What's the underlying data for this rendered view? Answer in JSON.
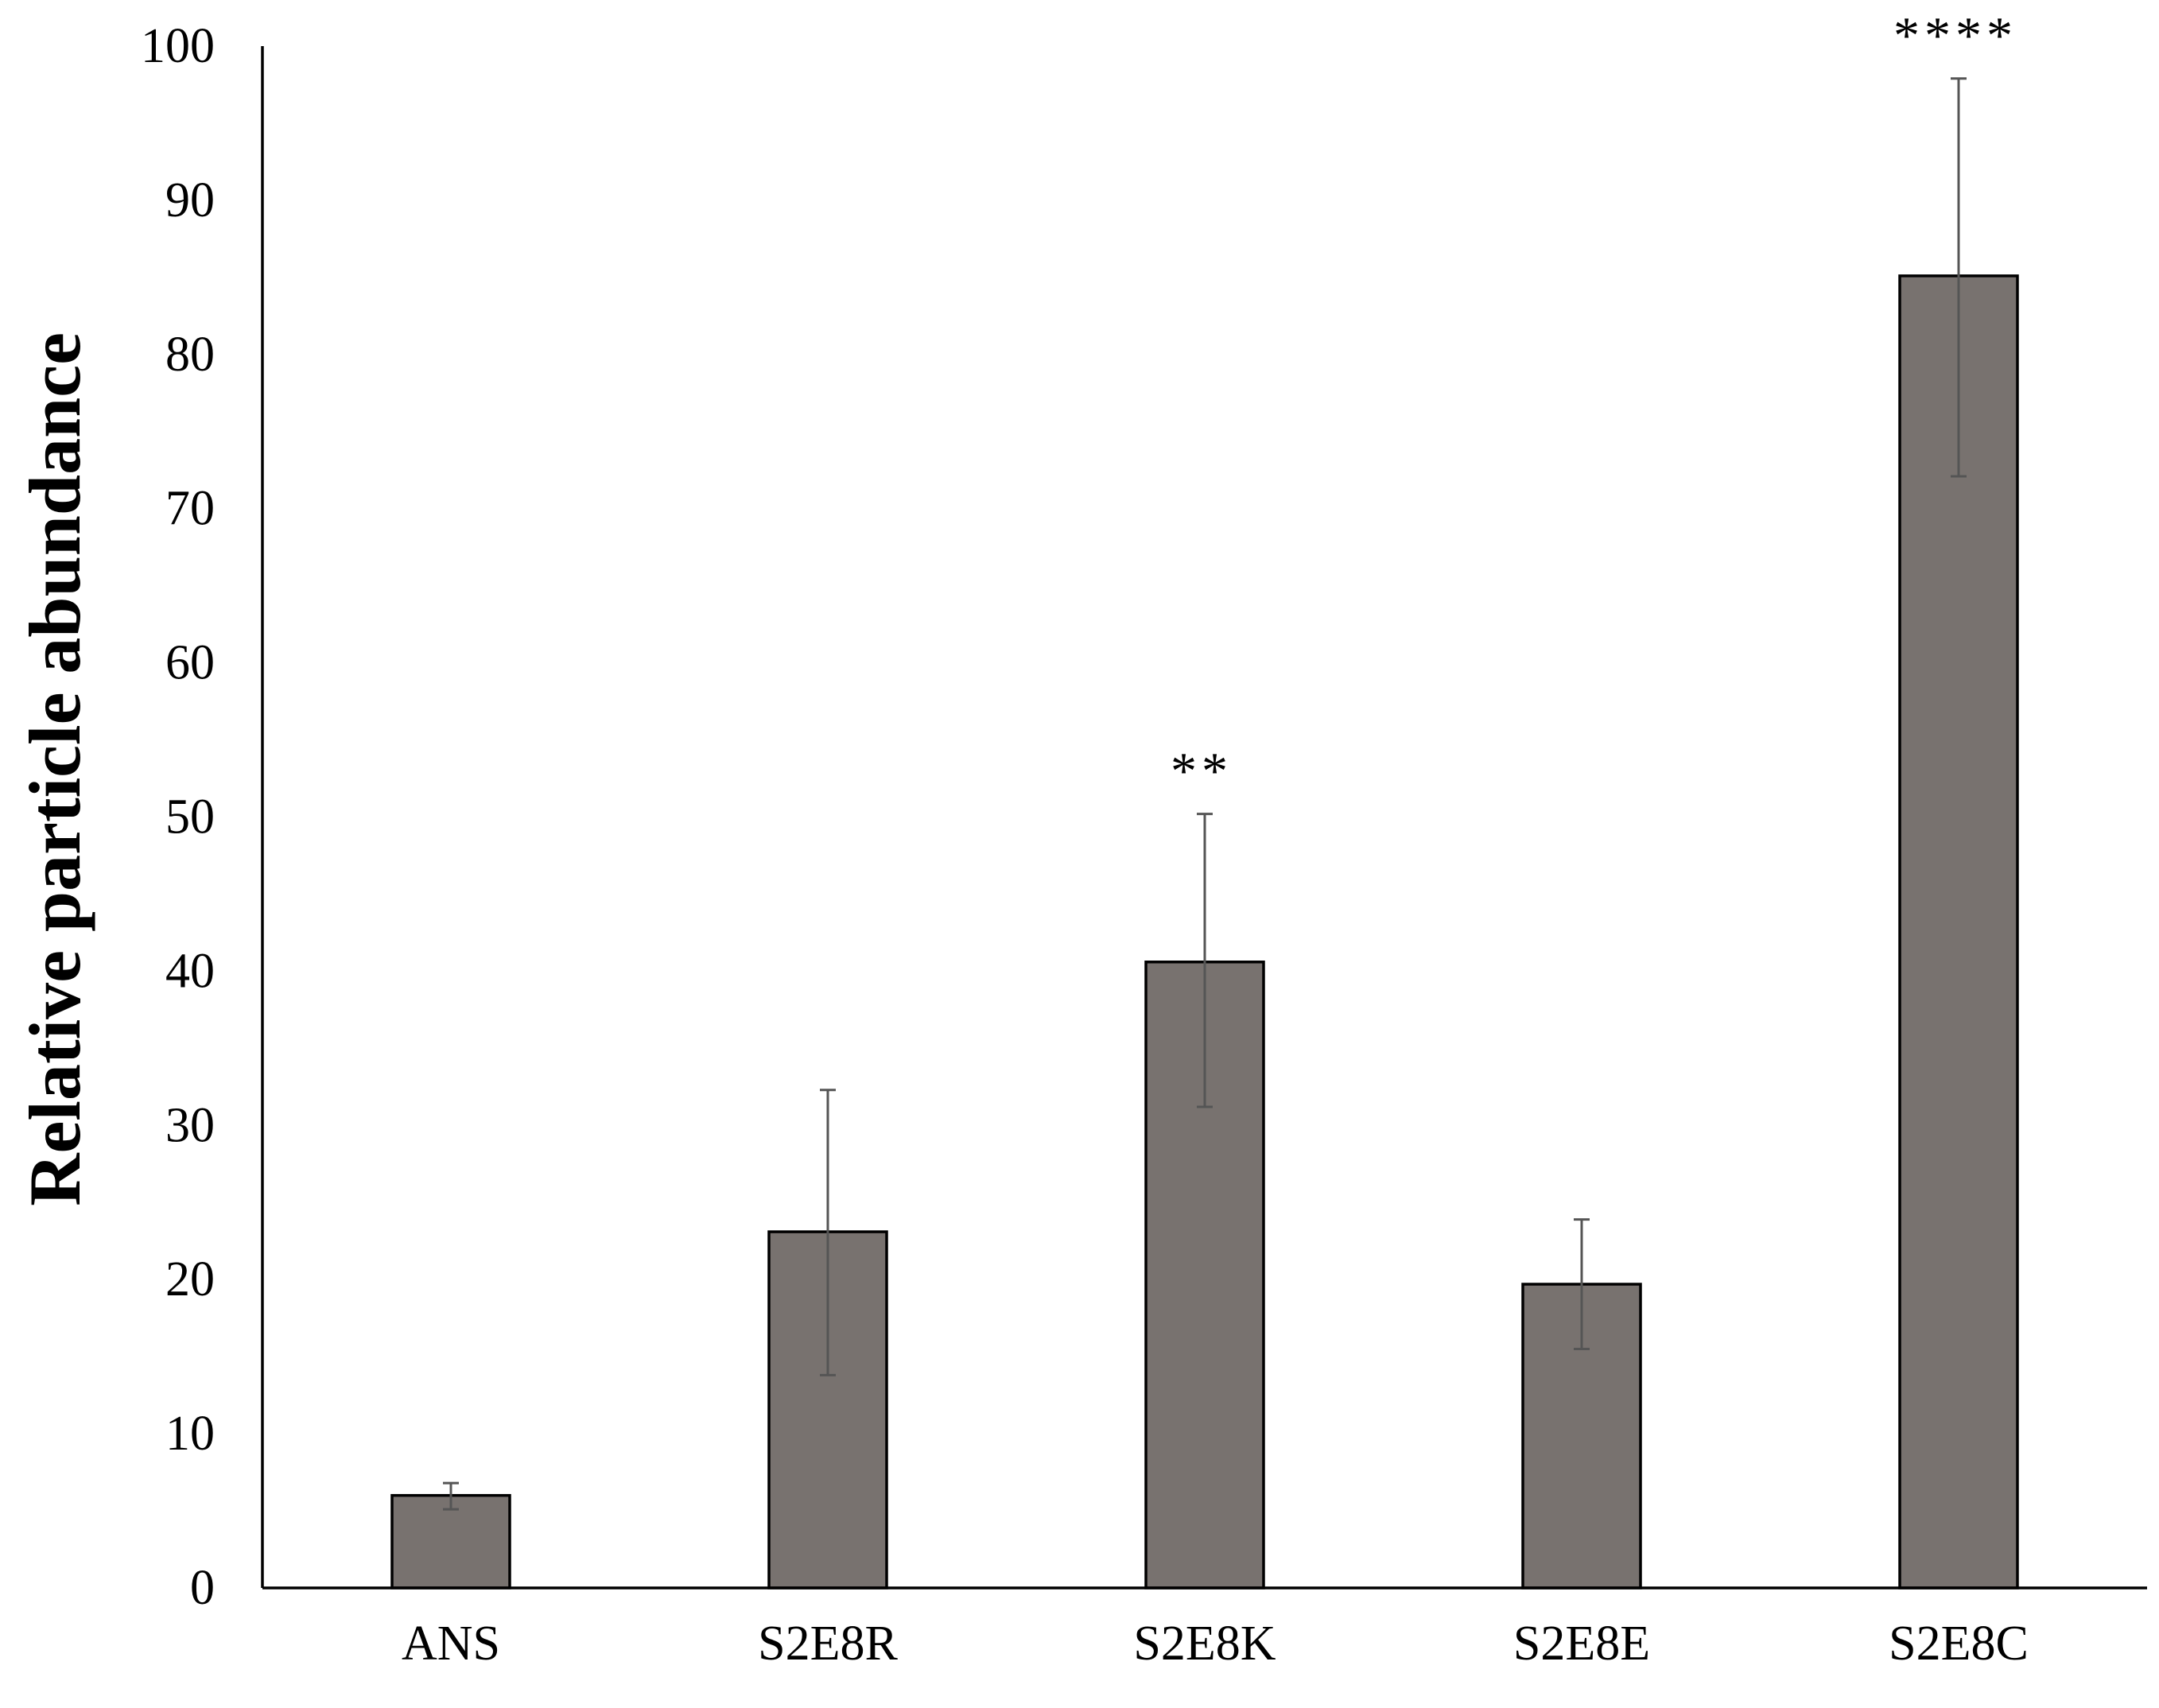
{
  "chart_data": {
    "type": "bar",
    "title": "",
    "xlabel": "",
    "ylabel": "Relative particle abundance",
    "ylim": [
      0,
      100
    ],
    "yticks": [
      0,
      10,
      20,
      30,
      40,
      50,
      60,
      70,
      80,
      90,
      100
    ],
    "grid": false,
    "legend": "none",
    "categories": [
      "ANS",
      "S2E8R",
      "S2E8K",
      "S2E8E",
      "S2E8C"
    ],
    "values": [
      6.0,
      23.1,
      40.6,
      19.7,
      85.1
    ],
    "error_low": [
      5.1,
      13.8,
      31.2,
      15.5,
      72.1
    ],
    "error_high": [
      6.8,
      32.3,
      50.2,
      23.9,
      97.9
    ],
    "significance": [
      "",
      "",
      "**",
      "",
      "****"
    ],
    "colors": {
      "bar_fill": "#78726f",
      "bar_stroke": "#000000",
      "error_bar": "#555555",
      "axis": "#000000"
    }
  }
}
